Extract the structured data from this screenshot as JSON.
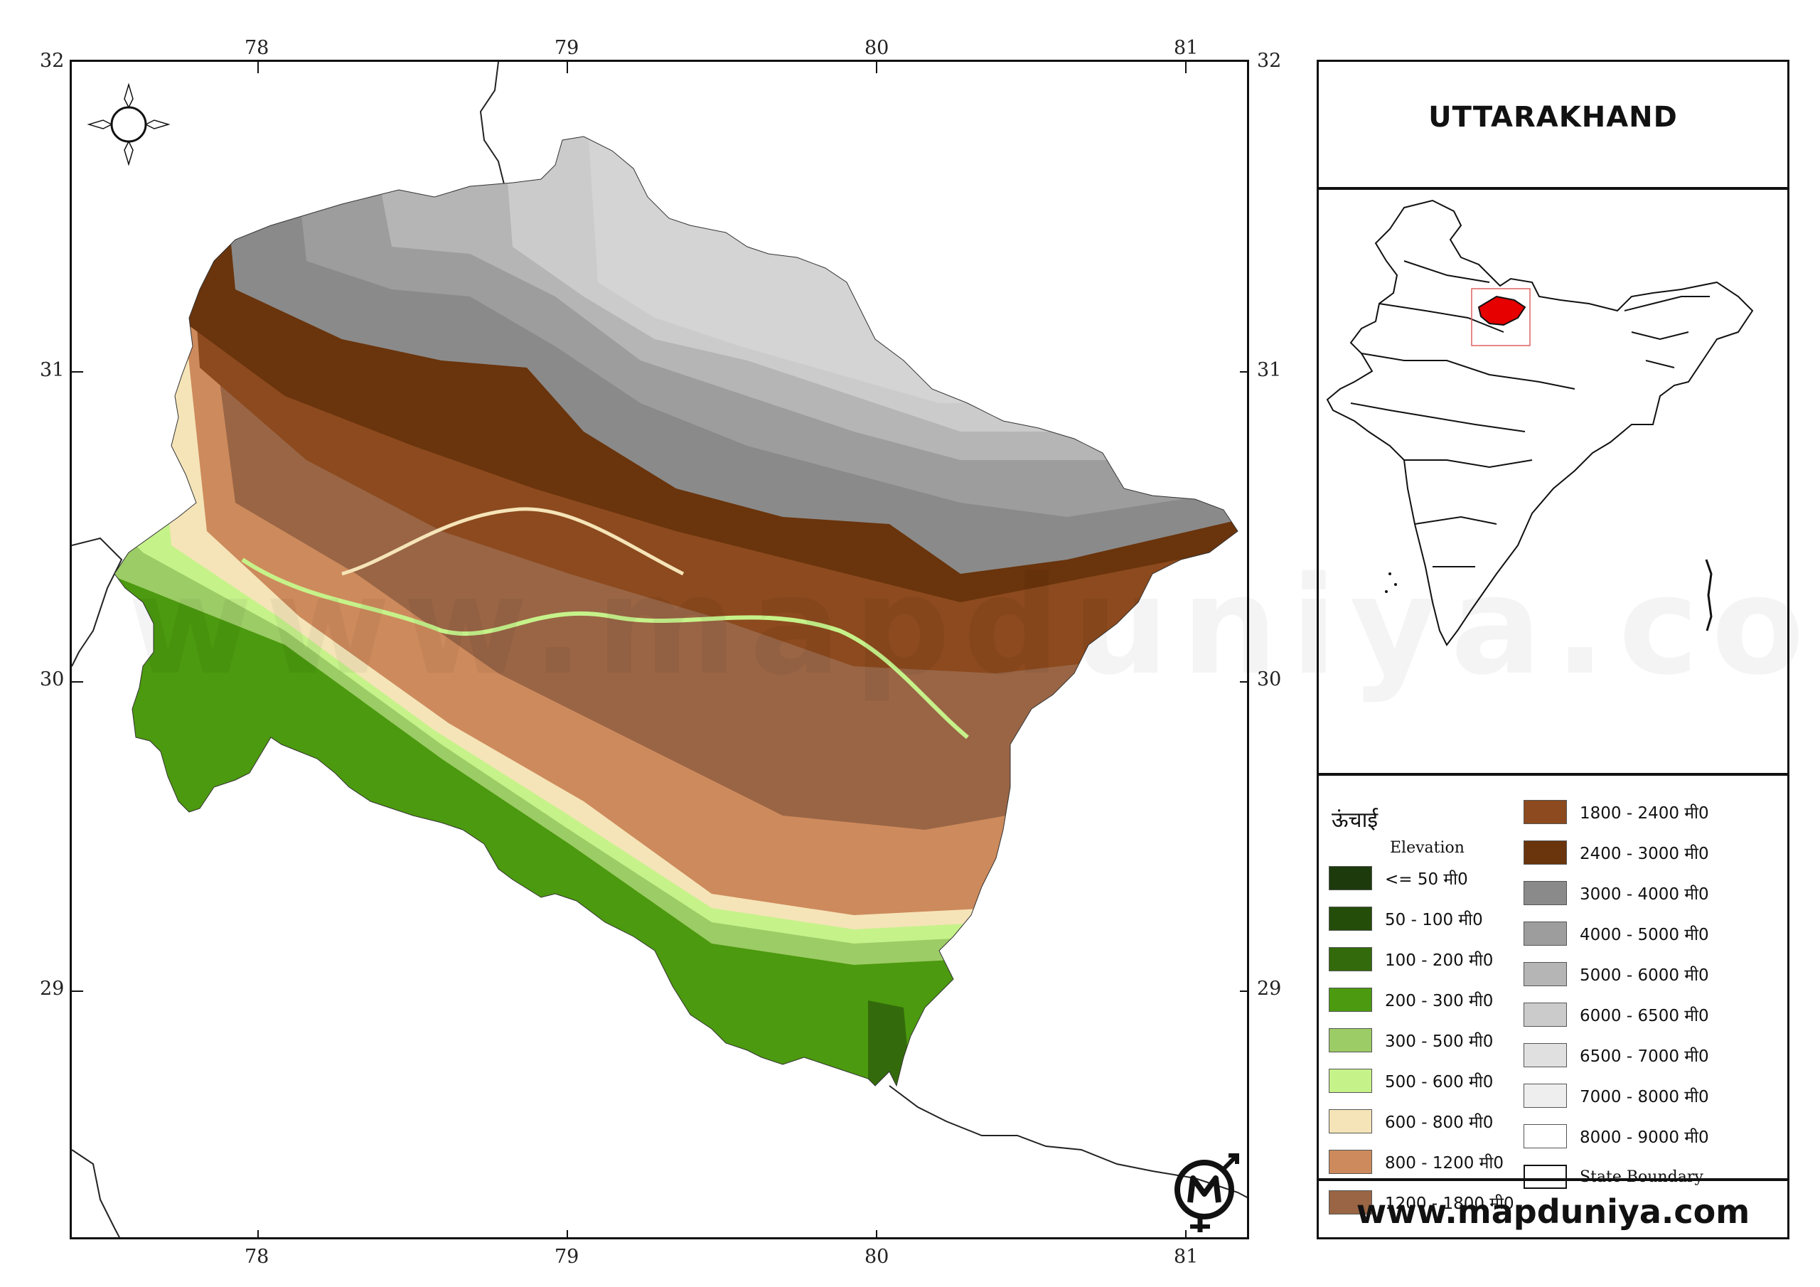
{
  "map": {
    "title": "UTTARAKHAND",
    "website": "www.mapduniya.com",
    "watermark": "www.mapduniya.com",
    "longitude_ticks": [
      "78",
      "79",
      "80",
      "81"
    ],
    "latitude_ticks": [
      "32",
      "31",
      "30",
      "29"
    ],
    "highlight_color": "#e60000"
  },
  "legend": {
    "title_hindi": "ऊंचाई",
    "title_english": "Elevation",
    "items": [
      {
        "label": "<= 50 मी0",
        "color": "#1c3a0c"
      },
      {
        "label": "50 - 100 मी0",
        "color": "#244d0a"
      },
      {
        "label": "100 - 200 मी0",
        "color": "#336b0c"
      },
      {
        "label": "200 - 300 मी0",
        "color": "#4c9a0f"
      },
      {
        "label": "300 - 500 मी0",
        "color": "#9ccc66"
      },
      {
        "label": "500 - 600 मी0",
        "color": "#c6f28a"
      },
      {
        "label": "600 - 800 मी0",
        "color": "#f5e4b8"
      },
      {
        "label": "800 - 1200 मी0",
        "color": "#cd8a5c"
      },
      {
        "label": "1200 - 1800 मी0",
        "color": "#996545"
      },
      {
        "label": "1800 - 2400 मी0",
        "color": "#8c4a1e"
      },
      {
        "label": "2400 - 3000 मी0",
        "color": "#6a340c"
      },
      {
        "label": "3000 - 4000 मी0",
        "color": "#8a8a8a"
      },
      {
        "label": "4000 - 5000 मी0",
        "color": "#9d9d9d"
      },
      {
        "label": "5000 - 6000 मी0",
        "color": "#b5b5b5"
      },
      {
        "label": "6000 - 6500 मी0",
        "color": "#cbcbcb"
      },
      {
        "label": "6500 - 7000 मी0",
        "color": "#e0e0e0"
      },
      {
        "label": "7000 - 8000 मी0",
        "color": "#eeeeee"
      },
      {
        "label": "8000 - 9000 मी0",
        "color": "#ffffff"
      }
    ],
    "boundary_label": "State Boundary"
  }
}
